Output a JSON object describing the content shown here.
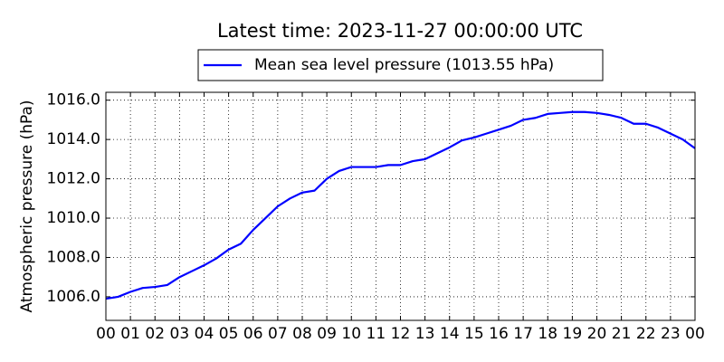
{
  "chart_data": {
    "type": "line",
    "title": "Latest time: 2023-11-27 00:00:00 UTC",
    "y_label": "Atmospheric pressure (hPa)",
    "legend": "upper center",
    "grid": true,
    "x": [
      0,
      0.5,
      1,
      1.5,
      2,
      2.5,
      3,
      3.5,
      4,
      4.5,
      5,
      5.5,
      6,
      6.5,
      7,
      7.5,
      8,
      8.5,
      9,
      9.5,
      10,
      10.5,
      11,
      11.5,
      12,
      12.5,
      13,
      13.5,
      14,
      14.5,
      15,
      15.5,
      16,
      16.5,
      17,
      17.5,
      18,
      18.5,
      19,
      19.5,
      20,
      20.5,
      21,
      21.5,
      22,
      22.5,
      23,
      23.5,
      24
    ],
    "series": [
      {
        "name": "Mean sea level pressure (1013.55 hPa)",
        "color": "#0000ff",
        "values": [
          1005.9,
          1006.0,
          1006.25,
          1006.45,
          1006.5,
          1006.6,
          1007.0,
          1007.3,
          1007.6,
          1007.95,
          1008.4,
          1008.7,
          1009.4,
          1010.0,
          1010.6,
          1011.0,
          1011.3,
          1011.4,
          1012.0,
          1012.4,
          1012.6,
          1012.6,
          1012.6,
          1012.7,
          1012.7,
          1012.9,
          1013.0,
          1013.3,
          1013.6,
          1013.95,
          1014.1,
          1014.3,
          1014.5,
          1014.7,
          1015.0,
          1015.1,
          1015.3,
          1015.35,
          1015.4,
          1015.4,
          1015.35,
          1015.25,
          1015.1,
          1014.8,
          1014.8,
          1014.6,
          1014.3,
          1014.0,
          1013.55
        ]
      }
    ],
    "xlim": [
      0,
      24
    ],
    "xticks": [
      {
        "value": 0,
        "label": "00"
      },
      {
        "value": 1,
        "label": "01"
      },
      {
        "value": 2,
        "label": "02"
      },
      {
        "value": 3,
        "label": "03"
      },
      {
        "value": 4,
        "label": "04"
      },
      {
        "value": 5,
        "label": "05"
      },
      {
        "value": 6,
        "label": "06"
      },
      {
        "value": 7,
        "label": "07"
      },
      {
        "value": 8,
        "label": "08"
      },
      {
        "value": 9,
        "label": "09"
      },
      {
        "value": 10,
        "label": "10"
      },
      {
        "value": 11,
        "label": "11"
      },
      {
        "value": 12,
        "label": "12"
      },
      {
        "value": 13,
        "label": "13"
      },
      {
        "value": 14,
        "label": "14"
      },
      {
        "value": 15,
        "label": "15"
      },
      {
        "value": 16,
        "label": "16"
      },
      {
        "value": 17,
        "label": "17"
      },
      {
        "value": 18,
        "label": "18"
      },
      {
        "value": 19,
        "label": "19"
      },
      {
        "value": 20,
        "label": "20"
      },
      {
        "value": 21,
        "label": "21"
      },
      {
        "value": 22,
        "label": "22"
      },
      {
        "value": 23,
        "label": "23"
      },
      {
        "value": 24,
        "label": "00"
      }
    ],
    "ylim": [
      1004.8,
      1016.4
    ],
    "yticks": [
      {
        "value": 1006,
        "label": "1006.0"
      },
      {
        "value": 1008,
        "label": "1008.0"
      },
      {
        "value": 1010,
        "label": "1010.0"
      },
      {
        "value": 1012,
        "label": "1012.0"
      },
      {
        "value": 1014,
        "label": "1014.0"
      },
      {
        "value": 1016,
        "label": "1016.0"
      }
    ]
  }
}
